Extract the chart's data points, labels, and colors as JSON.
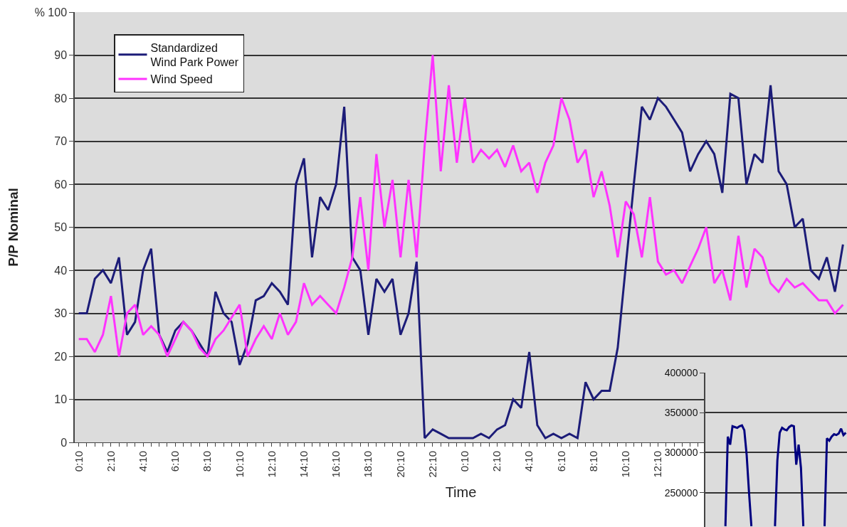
{
  "chart_data": [
    {
      "type": "line",
      "xlabel": "Time",
      "ylabel": "P/P Nominal",
      "categories": [
        "0:10",
        null,
        null,
        null,
        "2:10",
        null,
        null,
        null,
        "4:10",
        null,
        null,
        null,
        "6:10",
        null,
        null,
        null,
        "8:10",
        null,
        null,
        null,
        "10:10",
        null,
        null,
        null,
        "12:10",
        null,
        null,
        null,
        "14:10",
        null,
        null,
        null,
        "16:10",
        null,
        null,
        null,
        "18:10",
        null,
        null,
        null,
        "20:10",
        null,
        null,
        null,
        "22:10",
        null,
        null,
        null,
        "0:10",
        null,
        null,
        null,
        "2:10",
        null,
        null,
        null,
        "4:10",
        null,
        null,
        null,
        "6:10",
        null,
        null,
        null,
        "8:10",
        null,
        null,
        null,
        "10:10",
        null,
        null,
        null,
        "12:10",
        null,
        null,
        null,
        null,
        null,
        null,
        null,
        null,
        null,
        null,
        null,
        null,
        null,
        null,
        null,
        null,
        null,
        null,
        null,
        null,
        null,
        null,
        null
      ],
      "series": [
        {
          "name": "Standardized\nWind Park Power",
          "color": "#1c1c78",
          "values": [
            30,
            30,
            38,
            40,
            37,
            43,
            25,
            28,
            40,
            45,
            25,
            21,
            26,
            28,
            26,
            23,
            20,
            35,
            30,
            28,
            18,
            23,
            33,
            34,
            37,
            35,
            32,
            60,
            66,
            43,
            57,
            54,
            60,
            78,
            43,
            40,
            25,
            38,
            35,
            38,
            25,
            30,
            42,
            1,
            3,
            2,
            1,
            1,
            1,
            1,
            2,
            1,
            3,
            4,
            10,
            8,
            21,
            4,
            1,
            2,
            1,
            2,
            1,
            14,
            10,
            12,
            12,
            22,
            41,
            60,
            78,
            75,
            80,
            78,
            75,
            72,
            63,
            67,
            70,
            67,
            58,
            81,
            80,
            60,
            67,
            65,
            83,
            63,
            60,
            50,
            52,
            40,
            38,
            43,
            35,
            46
          ]
        },
        {
          "name": "Wind Speed",
          "color": "#ff33ff",
          "values": [
            24,
            24,
            21,
            25,
            34,
            20,
            30,
            32,
            25,
            27,
            25,
            20,
            24,
            28,
            26,
            22,
            20,
            24,
            26,
            29,
            32,
            20,
            24,
            27,
            24,
            30,
            25,
            28,
            37,
            32,
            34,
            32,
            30,
            36,
            43,
            57,
            40,
            67,
            50,
            61,
            43,
            61,
            43,
            69,
            90,
            63,
            83,
            65,
            80,
            65,
            68,
            66,
            68,
            64,
            69,
            63,
            65,
            58,
            65,
            69,
            80,
            75,
            65,
            68,
            57,
            63,
            55,
            43,
            56,
            53,
            43,
            57,
            42,
            39,
            40,
            37,
            41,
            45,
            50,
            37,
            40,
            33,
            48,
            36,
            45,
            43,
            37,
            35,
            38,
            36,
            37,
            35,
            33,
            33,
            30,
            32
          ]
        }
      ],
      "ylim": [
        0,
        100
      ],
      "yticks": [
        0,
        10,
        20,
        30,
        40,
        50,
        60,
        70,
        80,
        90,
        {
          "value": 100,
          "label": "% 100"
        }
      ],
      "grid": "y",
      "legend": "top left",
      "line_style": "solid",
      "marker": "none"
    },
    {
      "type": "line",
      "categories": [
        null,
        null,
        null,
        null,
        null,
        null,
        null,
        null,
        null,
        null,
        null,
        null,
        null,
        null,
        null,
        null,
        null,
        null,
        null,
        null,
        null,
        null,
        null,
        null,
        null,
        null,
        null,
        null,
        null,
        null,
        null,
        null,
        null,
        null,
        null,
        null,
        null,
        null,
        null,
        null,
        null,
        null,
        null,
        null,
        null,
        null,
        null,
        null,
        null,
        null,
        null,
        null,
        null,
        null,
        null,
        null,
        null,
        null,
        null,
        null
      ],
      "series": [
        {
          "color": "#000080",
          "values": [
            null,
            null,
            null,
            null,
            null,
            null,
            null,
            null,
            208000,
            320000,
            310000,
            333000,
            332000,
            331000,
            333000,
            334000,
            328000,
            297000,
            250000,
            208000,
            null,
            null,
            null,
            null,
            null,
            null,
            null,
            null,
            null,
            208000,
            290000,
            325000,
            331000,
            329000,
            328000,
            332000,
            334000,
            333000,
            285000,
            310000,
            281000,
            208000,
            null,
            null,
            null,
            null,
            null,
            null,
            null,
            null,
            208000,
            318000,
            315000,
            320000,
            323000,
            322000,
            324000,
            330000,
            322000,
            325000
          ]
        }
      ],
      "ylim": [
        207000,
        400000
      ],
      "yticks": [
        250000,
        300000,
        350000,
        400000
      ],
      "grid": "y",
      "tick_labels": "y",
      "line_style": "solid",
      "marker": "none"
    }
  ]
}
